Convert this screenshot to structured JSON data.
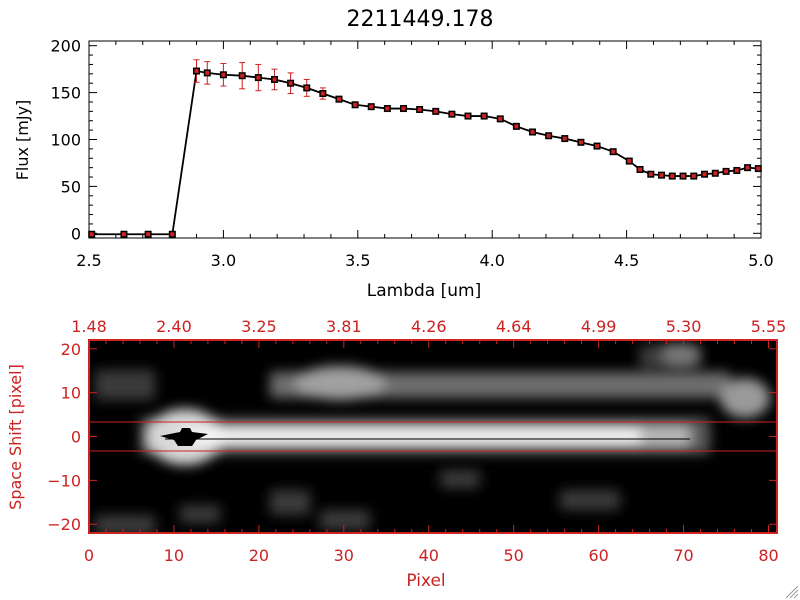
{
  "chart_data": [
    {
      "type": "line",
      "title": "2211449.178",
      "xlabel": "Lambda [um]",
      "ylabel": "Flux [mJy]",
      "xlim": [
        2.5,
        5.0
      ],
      "ylim": [
        -5,
        205
      ],
      "x_ticks": [
        2.5,
        3.0,
        3.5,
        4.0,
        4.5,
        5.0
      ],
      "x_tick_labels": [
        "2.5",
        "3.0",
        "3.5",
        "4.0",
        "4.5",
        "5.0"
      ],
      "y_ticks": [
        0,
        50,
        100,
        150,
        200
      ],
      "y_tick_labels": [
        "0",
        "50",
        "100",
        "150",
        "200"
      ],
      "line_color": "#000000",
      "marker_color": "#cc2222",
      "errorbar_color": "#cc2222",
      "series": [
        {
          "x": [
            2.51,
            2.63,
            2.72,
            2.81,
            2.9,
            2.94,
            3.0,
            3.07,
            3.13,
            3.19,
            3.25,
            3.31,
            3.37,
            3.43,
            3.49,
            3.55,
            3.61,
            3.67,
            3.73,
            3.79,
            3.85,
            3.91,
            3.97,
            4.03,
            4.09,
            4.15,
            4.21,
            4.27,
            4.33,
            4.39,
            4.45,
            4.51,
            4.55,
            4.59,
            4.63,
            4.67,
            4.71,
            4.75,
            4.79,
            4.83,
            4.87,
            4.91,
            4.95,
            4.99
          ],
          "y": [
            -1,
            -1,
            -1,
            -1,
            173,
            171,
            169,
            168,
            166,
            164,
            160,
            155,
            149,
            143,
            137,
            135,
            133,
            133,
            132,
            130,
            127,
            125,
            125,
            122,
            114,
            108,
            104,
            101,
            97,
            93,
            87,
            77,
            68,
            63,
            62,
            61,
            61,
            61,
            63,
            64,
            66,
            67,
            70,
            69
          ],
          "errors": [
            0,
            0,
            0,
            0,
            12,
            12,
            12,
            14,
            14,
            11,
            11,
            9,
            6,
            3,
            2,
            2,
            2,
            2,
            2,
            2,
            2,
            2,
            2,
            2,
            2,
            2,
            2,
            2,
            2,
            2,
            2,
            2,
            2,
            2,
            2,
            2,
            2,
            2,
            2,
            2,
            2,
            2,
            2,
            2
          ]
        }
      ]
    },
    {
      "type": "heatmap",
      "xlabel": "Pixel",
      "ylabel": "Space Shift [pixel]",
      "xlim": [
        0,
        81
      ],
      "ylim": [
        -22,
        22
      ],
      "x_ticks": [
        0,
        10,
        20,
        30,
        40,
        50,
        60,
        70,
        80
      ],
      "x_tick_labels": [
        "0",
        "10",
        "20",
        "30",
        "40",
        "50",
        "60",
        "70",
        "80"
      ],
      "y_ticks": [
        -20,
        -10,
        0,
        10,
        20
      ],
      "y_tick_labels": [
        "−20",
        "−10",
        "0",
        "10",
        "20"
      ],
      "top_axis_tick_labels": [
        "1.48",
        "2.40",
        "3.25",
        "3.81",
        "4.26",
        "4.64",
        "4.99",
        "5.30",
        "5.55"
      ],
      "axis_color": "#cc2222",
      "extraction_lines_y": [
        3,
        -3
      ],
      "features": [
        {
          "name": "main trace",
          "x": [
            8,
            70
          ],
          "y": -1
        },
        {
          "name": "secondary blob",
          "x": [
            25,
            75
          ],
          "y": 11
        },
        {
          "name": "bright core",
          "x": [
            12,
            12
          ],
          "y": -1
        }
      ]
    }
  ]
}
